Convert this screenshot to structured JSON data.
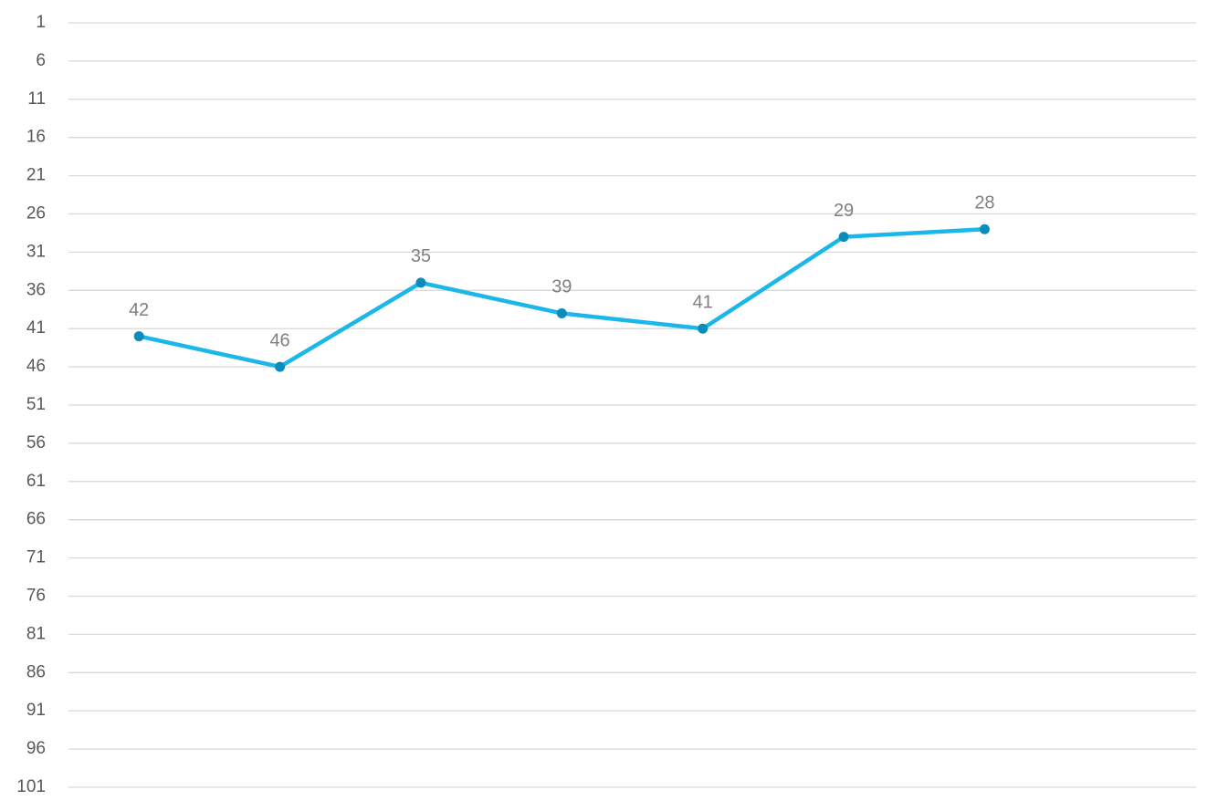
{
  "chart_data": {
    "type": "line",
    "categories": [
      null,
      null,
      null,
      null,
      null,
      null,
      null,
      null
    ],
    "series": [
      {
        "color": "#1bb6ea",
        "marker_color": "#0b8cbb",
        "values": [
          42,
          46,
          35,
          39,
          41,
          29,
          28,
          null
        ]
      }
    ],
    "ylim": [
      101,
      1
    ],
    "yticks": [
      1,
      6,
      11,
      16,
      21,
      26,
      31,
      36,
      41,
      46,
      51,
      56,
      61,
      66,
      71,
      76,
      81,
      86,
      91,
      96,
      101
    ],
    "grid": true
  }
}
